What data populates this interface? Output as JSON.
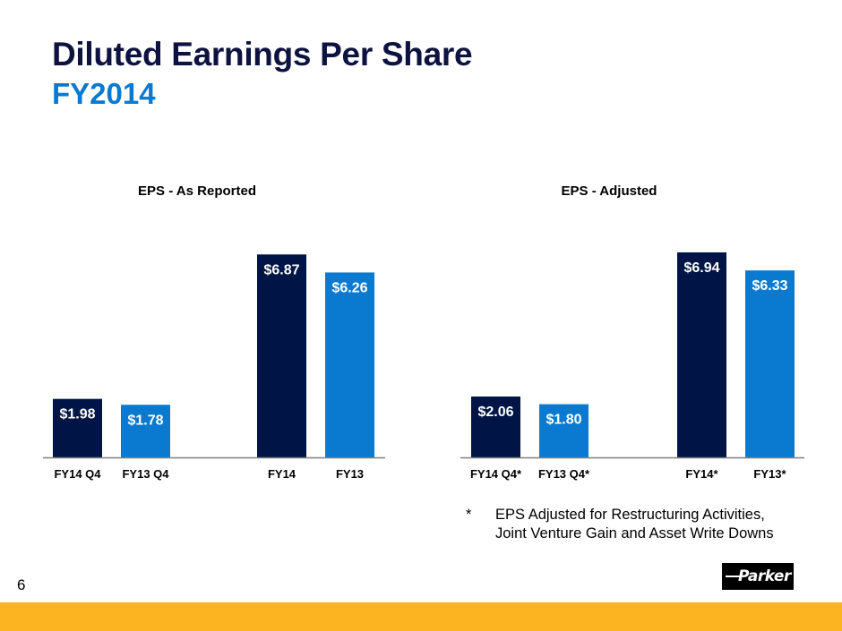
{
  "slide": {
    "title": "Diluted Earnings Per Share",
    "subtitle": "FY2014",
    "page_number": "6",
    "footnote_marker": "*",
    "footnote_lines": [
      "EPS Adjusted for Restructuring Activities,",
      "Joint Venture Gain and Asset Write Downs"
    ],
    "logo_text": "Parker",
    "colors": {
      "title": "#0d1240",
      "subtitle": "#0a7ad0",
      "current_year_bar": "#001446",
      "prior_year_bar": "#0a7ad0",
      "footer_band": "#fcb421"
    }
  },
  "chart_data": [
    {
      "type": "bar",
      "title": "EPS - As Reported",
      "categories": [
        "FY14 Q4",
        "FY13 Q4",
        "FY14",
        "FY13"
      ],
      "values": [
        1.98,
        1.78,
        6.87,
        6.26
      ],
      "labels": [
        "$1.98",
        "$1.78",
        "$6.87",
        "$6.26"
      ],
      "bar_colors": [
        "#001446",
        "#0a7ad0",
        "#001446",
        "#0a7ad0"
      ],
      "xlabel": "",
      "ylabel": "",
      "ylim": [
        0,
        8
      ],
      "grid": false,
      "legend": "none"
    },
    {
      "type": "bar",
      "title": "EPS - Adjusted",
      "categories": [
        "FY14 Q4*",
        "FY13 Q4*",
        "FY14*",
        "FY13*"
      ],
      "values": [
        2.06,
        1.8,
        6.94,
        6.33
      ],
      "labels": [
        "$2.06",
        "$1.80",
        "$6.94",
        "$6.33"
      ],
      "bar_colors": [
        "#001446",
        "#0a7ad0",
        "#001446",
        "#0a7ad0"
      ],
      "xlabel": "",
      "ylabel": "",
      "ylim": [
        0,
        8
      ],
      "grid": false,
      "legend": "none"
    }
  ]
}
